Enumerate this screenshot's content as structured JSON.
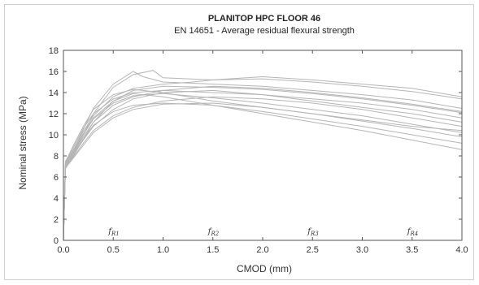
{
  "chart_data": {
    "type": "line",
    "title": "PLANITOP HPC FLOOR 46",
    "subtitle": "EN 14651 - Average residual flexural strength",
    "xlabel": "CMOD (mm)",
    "ylabel": "Nominal stress (MPa)",
    "xlim": [
      0,
      4
    ],
    "ylim": [
      0,
      18
    ],
    "xticks": [
      "0.0",
      "0.5",
      "1.0",
      "1.5",
      "2.0",
      "2.5",
      "3.0",
      "3.5",
      "4.0"
    ],
    "yticks": [
      "0",
      "2",
      "4",
      "6",
      "8",
      "10",
      "12",
      "14",
      "16",
      "18"
    ],
    "grid": false,
    "line_color": "#b5b5b5",
    "annotations": [
      {
        "base": "f",
        "sub": "R1",
        "x": 0.5,
        "y": 0.6
      },
      {
        "base": "f",
        "sub": "R2",
        "x": 1.5,
        "y": 0.6
      },
      {
        "base": "f",
        "sub": "R3",
        "x": 2.5,
        "y": 0.6
      },
      {
        "base": "f",
        "sub": "R4",
        "x": 3.5,
        "y": 0.6
      }
    ],
    "series": [
      {
        "x": [
          0,
          0.02,
          0.05,
          0.1,
          0.2,
          0.3,
          0.5,
          0.7,
          0.8,
          1.0,
          1.5,
          2.0,
          2.5,
          3.0,
          3.5,
          4.0
        ],
        "y": [
          0,
          7.2,
          7.6,
          8.5,
          10.5,
          12.5,
          14.8,
          16.0,
          15.5,
          15.0,
          14.8,
          14.6,
          14.2,
          13.8,
          13.3,
          12.5
        ]
      },
      {
        "x": [
          0,
          0.02,
          0.05,
          0.1,
          0.2,
          0.3,
          0.5,
          0.7,
          0.9,
          1.0,
          1.5,
          2.0,
          2.5,
          3.0,
          3.5,
          4.0
        ],
        "y": [
          0,
          7.0,
          7.4,
          8.2,
          10.0,
          12.0,
          14.5,
          15.7,
          16.1,
          15.4,
          15.2,
          15.5,
          15.2,
          14.8,
          14.4,
          13.6
        ]
      },
      {
        "x": [
          0,
          0.02,
          0.05,
          0.1,
          0.2,
          0.3,
          0.5,
          0.7,
          1.0,
          1.3,
          1.5,
          2.0,
          2.5,
          3.0,
          3.5,
          4.0
        ],
        "y": [
          0,
          7.3,
          7.8,
          8.6,
          10.3,
          11.8,
          13.6,
          14.4,
          14.8,
          15.0,
          15.2,
          15.3,
          15.0,
          14.6,
          14.1,
          13.4
        ]
      },
      {
        "x": [
          0,
          0.02,
          0.05,
          0.1,
          0.2,
          0.3,
          0.5,
          0.7,
          1.0,
          1.5,
          2.0,
          2.5,
          3.0,
          3.5,
          4.0
        ],
        "y": [
          0,
          6.8,
          7.3,
          8.0,
          9.6,
          11.2,
          13.2,
          14.2,
          14.6,
          14.5,
          14.3,
          13.9,
          13.4,
          12.8,
          12.1
        ]
      },
      {
        "x": [
          0,
          0.02,
          0.05,
          0.1,
          0.2,
          0.3,
          0.5,
          0.7,
          1.0,
          1.5,
          2.0,
          2.5,
          3.0,
          3.5,
          4.0
        ],
        "y": [
          0,
          7.1,
          7.5,
          8.3,
          9.8,
          11.2,
          12.8,
          13.6,
          14.2,
          14.6,
          14.4,
          14.0,
          13.5,
          12.9,
          12.2
        ]
      },
      {
        "x": [
          0,
          0.02,
          0.05,
          0.1,
          0.2,
          0.3,
          0.5,
          0.7,
          1.0,
          1.5,
          2.0,
          2.5,
          3.0,
          3.5,
          4.0
        ],
        "y": [
          0,
          7.4,
          7.9,
          8.8,
          10.6,
          12.0,
          13.4,
          14.0,
          14.2,
          14.0,
          13.8,
          13.4,
          13.0,
          12.4,
          11.6
        ]
      },
      {
        "x": [
          0,
          0.02,
          0.05,
          0.1,
          0.2,
          0.3,
          0.5,
          0.7,
          1.0,
          1.5,
          2.0,
          2.5,
          3.0,
          3.5,
          4.0
        ],
        "y": [
          0,
          7.0,
          7.4,
          8.1,
          9.5,
          10.8,
          12.4,
          13.4,
          14.0,
          14.2,
          13.8,
          13.2,
          12.6,
          12.0,
          11.2
        ]
      },
      {
        "x": [
          0,
          0.02,
          0.05,
          0.1,
          0.2,
          0.3,
          0.5,
          0.7,
          1.0,
          1.5,
          2.0,
          2.5,
          3.0,
          3.5,
          4.0
        ],
        "y": [
          0,
          6.9,
          7.3,
          7.9,
          9.2,
          10.4,
          11.8,
          12.6,
          13.2,
          13.6,
          13.4,
          13.0,
          12.4,
          11.6,
          10.8
        ]
      },
      {
        "x": [
          0,
          0.02,
          0.05,
          0.1,
          0.2,
          0.3,
          0.5,
          0.7,
          1.0,
          1.5,
          2.0,
          2.5,
          3.0,
          3.5,
          4.0
        ],
        "y": [
          0,
          7.2,
          7.6,
          8.4,
          10.0,
          11.5,
          13.0,
          13.7,
          13.9,
          13.5,
          13.0,
          12.4,
          11.8,
          11.0,
          10.2
        ]
      },
      {
        "x": [
          0,
          0.02,
          0.05,
          0.1,
          0.2,
          0.3,
          0.5,
          0.7,
          1.0,
          1.5,
          2.0,
          2.5,
          3.0,
          3.5,
          4.0
        ],
        "y": [
          0,
          7.5,
          8.0,
          9.0,
          10.8,
          12.4,
          13.8,
          14.3,
          14.0,
          13.2,
          12.6,
          12.0,
          11.3,
          10.6,
          9.8
        ]
      },
      {
        "x": [
          0,
          0.02,
          0.05,
          0.1,
          0.2,
          0.3,
          0.5,
          0.7,
          1.0,
          1.5,
          2.0,
          2.5,
          3.0,
          3.5,
          4.0
        ],
        "y": [
          0,
          7.0,
          7.5,
          8.2,
          9.6,
          10.9,
          12.2,
          12.8,
          13.0,
          12.8,
          12.2,
          11.5,
          10.8,
          10.0,
          9.2
        ]
      },
      {
        "x": [
          0,
          0.02,
          0.05,
          0.1,
          0.2,
          0.3,
          0.5,
          0.7,
          1.0,
          1.5,
          2.0,
          2.5,
          3.0,
          3.5,
          4.0
        ],
        "y": [
          0,
          7.3,
          7.7,
          8.5,
          10.1,
          11.6,
          13.2,
          13.9,
          13.6,
          12.8,
          12.0,
          11.2,
          10.4,
          9.5,
          8.6
        ]
      },
      {
        "x": [
          0,
          0.02,
          0.05,
          0.1,
          0.2,
          0.3,
          0.5,
          0.7,
          1.0,
          1.5,
          2.0,
          2.5,
          3.0,
          3.5,
          4.0
        ],
        "y": [
          0,
          6.8,
          7.2,
          7.8,
          9.0,
          10.2,
          11.6,
          12.4,
          12.9,
          13.0,
          12.6,
          12.0,
          11.4,
          10.8,
          10.4
        ]
      }
    ]
  }
}
